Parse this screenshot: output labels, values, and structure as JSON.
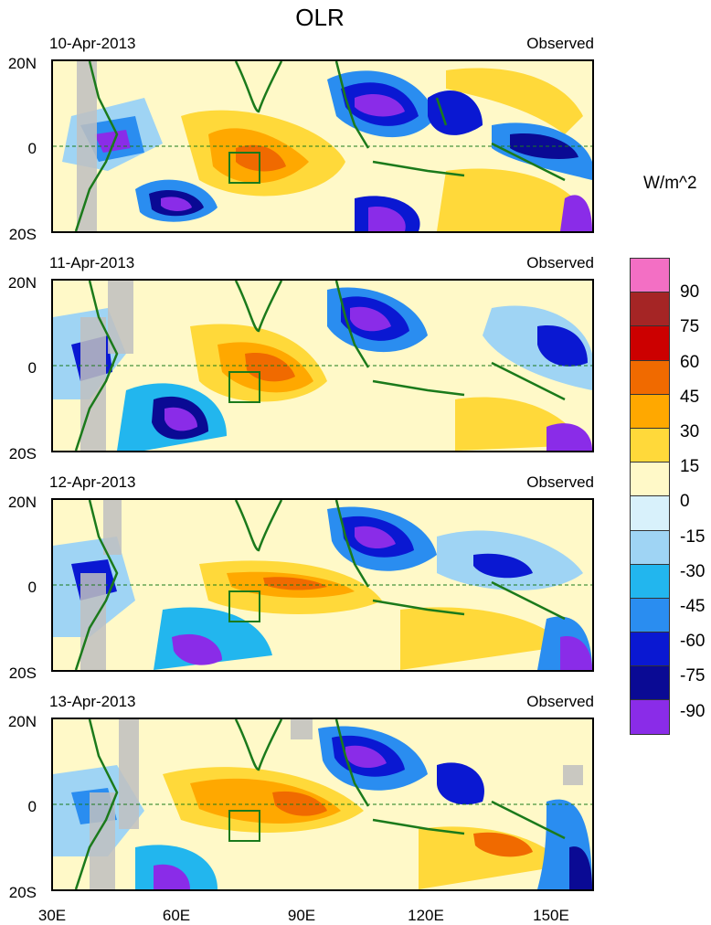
{
  "title": "OLR",
  "units": "W/m^2",
  "panels": [
    {
      "date": "10-Apr-2013",
      "label": "Observed"
    },
    {
      "date": "11-Apr-2013",
      "label": "Observed"
    },
    {
      "date": "12-Apr-2013",
      "label": "Observed"
    },
    {
      "date": "13-Apr-2013",
      "label": "Observed"
    }
  ],
  "lat_ticks": [
    "20N",
    "0",
    "20S"
  ],
  "lon_ticks": [
    "30E",
    "60E",
    "90E",
    "120E",
    "150E"
  ],
  "colorbar": {
    "labels": [
      "90",
      "75",
      "60",
      "45",
      "30",
      "15",
      "0",
      "-15",
      "-30",
      "-45",
      "-60",
      "-75",
      "-90"
    ],
    "colors": [
      "#f36fc4",
      "#a52525",
      "#cc0000",
      "#f06a00",
      "#ffa800",
      "#ffd93a",
      "#fff9c8",
      "#d8f1fb",
      "#9fd4f4",
      "#22b6ee",
      "#2a8df0",
      "#0a18d2",
      "#0a0a94",
      "#8a2ce8"
    ]
  }
}
